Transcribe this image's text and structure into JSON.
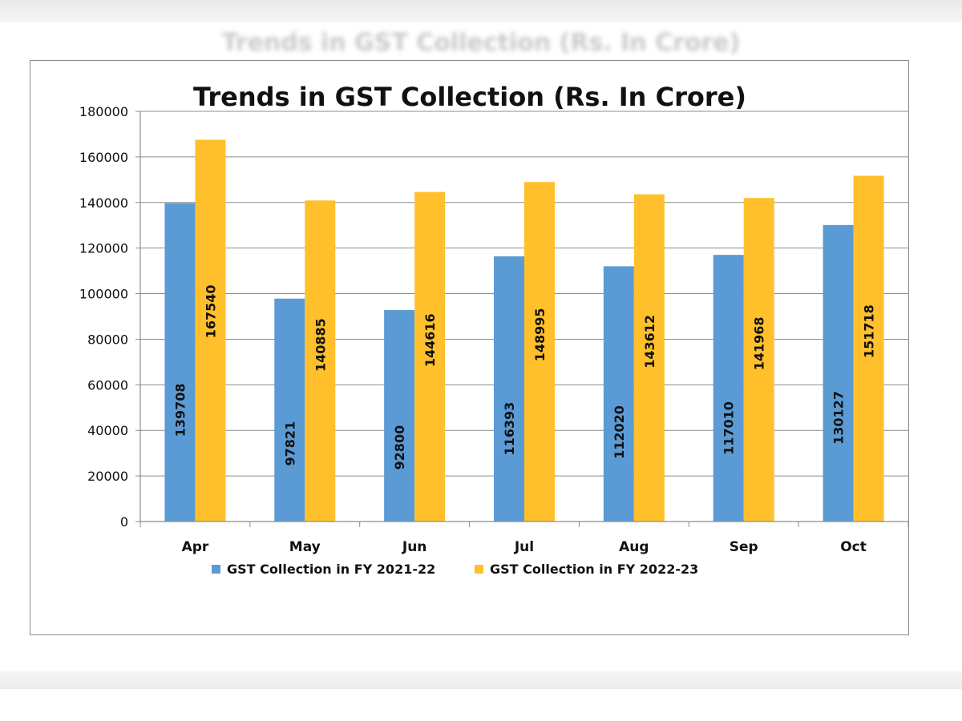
{
  "page": {
    "background_title": "Trends in GST Collection (Rs. In Crore)"
  },
  "chart_data": {
    "type": "bar",
    "title": "Trends in GST Collection (Rs. In Crore)",
    "xlabel": "",
    "ylabel": "",
    "categories": [
      "Apr",
      "May",
      "Jun",
      "Jul",
      "Aug",
      "Sep",
      "Oct"
    ],
    "series": [
      {
        "name": "GST Collection in FY 2021-22",
        "color": "#5b9bd5",
        "values": [
          139708,
          97821,
          92800,
          116393,
          112020,
          117010,
          130127
        ],
        "labels": [
          "139708",
          "97821",
          "92800",
          "116393",
          "112020",
          "117010",
          "130127"
        ]
      },
      {
        "name": "GST Collection in FY 2022-23",
        "color": "#ffc02b",
        "values": [
          167540,
          140885,
          144616,
          148995,
          143612,
          141968,
          151718
        ],
        "labels": [
          "167540",
          "140885",
          "144616",
          "148995",
          "143612",
          "141968",
          "151718"
        ]
      }
    ],
    "ylim": [
      0,
      180000
    ],
    "yticks": [
      0,
      20000,
      40000,
      60000,
      80000,
      100000,
      120000,
      140000,
      160000,
      180000
    ],
    "ytick_labels": [
      "0",
      "20000",
      "40000",
      "60000",
      "80000",
      "100000",
      "120000",
      "140000",
      "160000",
      "180000"
    ],
    "grid": true,
    "legend_position": "bottom",
    "data_labels": "rotated-inside"
  }
}
